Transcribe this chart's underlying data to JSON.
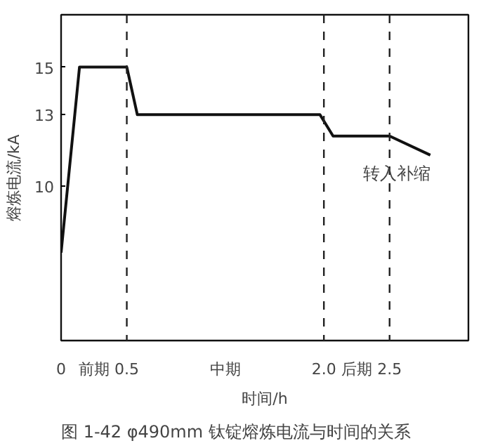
{
  "chart_data": {
    "type": "line",
    "title": "图 1-42  φ490mm 钛锭熔炼电流与时间的关系",
    "xlabel": "时间/h",
    "ylabel": "熔炼电流/kA",
    "x": [
      0,
      0.14,
      0.5,
      0.58,
      1.97,
      2.07,
      2.5,
      2.81
    ],
    "series": [
      {
        "color": "#111111",
        "values": [
          7.2,
          15,
          15,
          13,
          13,
          12.1,
          12.1,
          11.3
        ]
      }
    ],
    "xlim": [
      0,
      3.1
    ],
    "ylim": [
      3.5,
      17.2
    ],
    "xticks": [
      0,
      0.5,
      {
        "value": 2.0,
        "label": "2.0"
      },
      2.5
    ],
    "yticks": [
      10,
      13,
      15
    ],
    "ref_lines": [
      {
        "axis": "x",
        "value": 0.5,
        "line_style": "dashed"
      },
      {
        "axis": "x",
        "value": 2.0,
        "line_style": "dashed"
      },
      {
        "axis": "x",
        "value": 2.5,
        "line_style": "dashed"
      }
    ],
    "annotations": [
      "前期",
      "中期",
      "后期",
      {
        "text": "转入补缩",
        "x": 2.81,
        "y": 11.3
      }
    ],
    "grid": false,
    "marker": "none",
    "line_style": "solid"
  }
}
